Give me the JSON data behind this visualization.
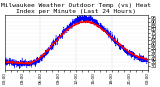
{
  "title": "Milwaukee Weather Outdoor Temp (vs) Heat Index per Minute (Last 24 Hours)",
  "ylabel": "",
  "xlabel": "",
  "bg_color": "#ffffff",
  "plot_bg_color": "#ffffff",
  "grid_color": "#cccccc",
  "line1_color": "#0000ff",
  "line2_color": "#ff0000",
  "ylim": [
    25,
    100
  ],
  "n_points": 1440,
  "title_fontsize": 4.5,
  "tick_fontsize": 3.5,
  "ytick_values": [
    30,
    35,
    40,
    45,
    50,
    55,
    60,
    65,
    70,
    75,
    80,
    85,
    90,
    95
  ],
  "n_xticks": 24
}
